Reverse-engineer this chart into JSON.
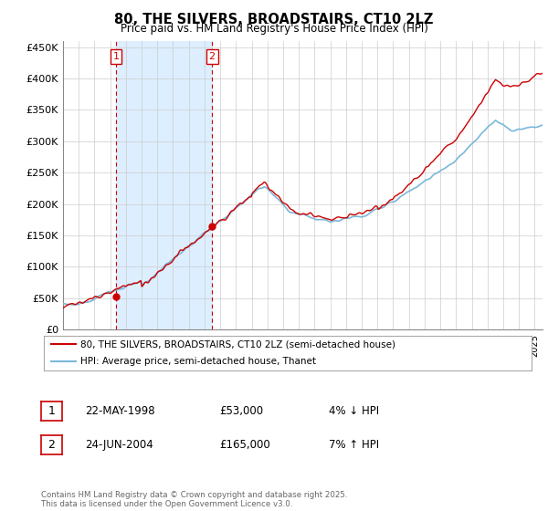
{
  "title": "80, THE SILVERS, BROADSTAIRS, CT10 2LZ",
  "subtitle": "Price paid vs. HM Land Registry's House Price Index (HPI)",
  "legend_line1": "80, THE SILVERS, BROADSTAIRS, CT10 2LZ (semi-detached house)",
  "legend_line2": "HPI: Average price, semi-detached house, Thanet",
  "footnote": "Contains HM Land Registry data © Crown copyright and database right 2025.\nThis data is licensed under the Open Government Licence v3.0.",
  "sale1_label": "1",
  "sale1_date": "22-MAY-1998",
  "sale1_price": "£53,000",
  "sale1_hpi": "4% ↓ HPI",
  "sale2_label": "2",
  "sale2_date": "24-JUN-2004",
  "sale2_price": "£165,000",
  "sale2_hpi": "7% ↑ HPI",
  "sale1_year": 1998.38,
  "sale1_value": 53000,
  "sale2_year": 2004.48,
  "sale2_value": 165000,
  "hpi_color": "#7ab8d9",
  "price_color": "#cc0000",
  "dashed_color": "#cc0000",
  "shade_color": "#ddeeff",
  "grid_color": "#cccccc",
  "background_color": "#ffffff",
  "ylim": [
    0,
    460000
  ],
  "xlim_start": 1995.0,
  "xlim_end": 2025.5,
  "yticks": [
    0,
    50000,
    100000,
    150000,
    200000,
    250000,
    300000,
    350000,
    400000,
    450000
  ],
  "ytick_labels": [
    "£0",
    "£50K",
    "£100K",
    "£150K",
    "£200K",
    "£250K",
    "£300K",
    "£350K",
    "£400K",
    "£450K"
  ]
}
